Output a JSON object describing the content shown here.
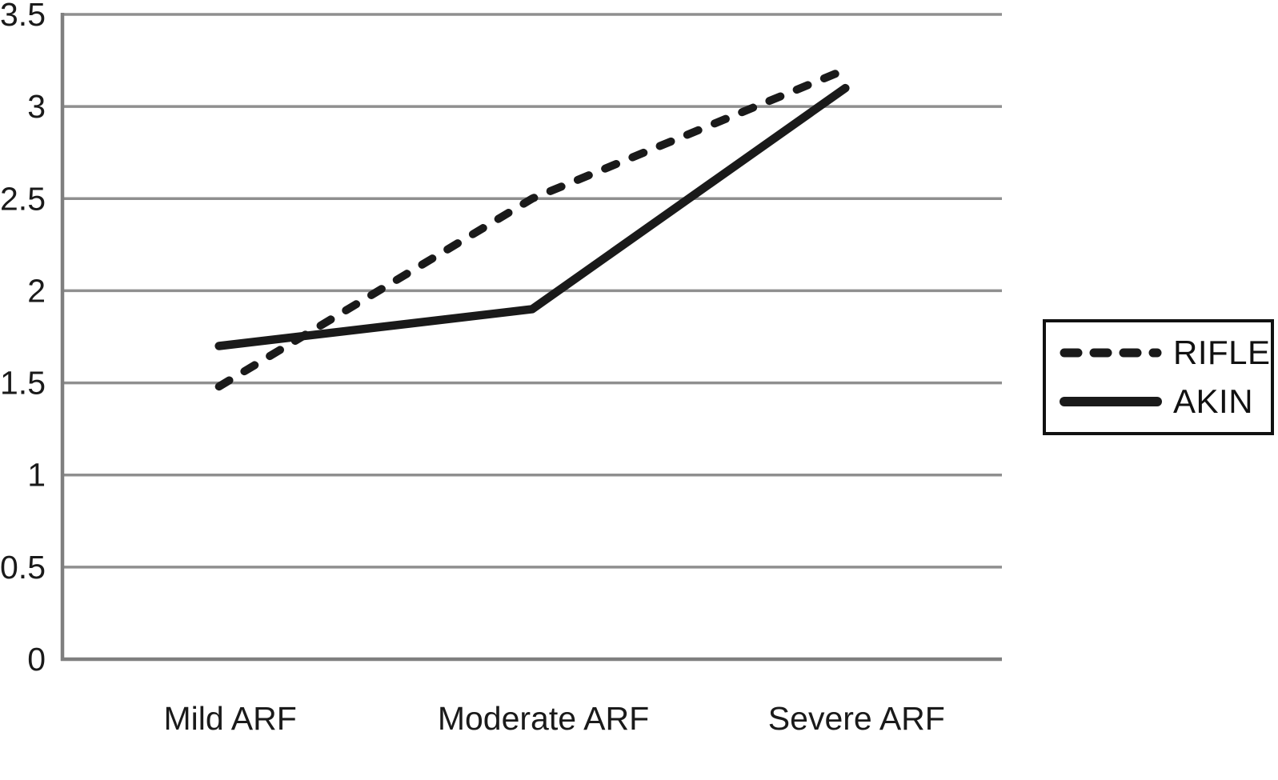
{
  "chart_data": {
    "type": "line",
    "title": "",
    "xlabel": "",
    "ylabel": "",
    "categories": [
      "Mild ARF",
      "Moderate ARF",
      "Severe ARF"
    ],
    "series": [
      {
        "name": "RIFLE",
        "line_style": "dashed",
        "values": [
          1.48,
          2.5,
          3.2
        ]
      },
      {
        "name": "AKIN",
        "line_style": "solid",
        "values": [
          1.7,
          1.9,
          3.1
        ]
      }
    ],
    "ylim": [
      0,
      3.5
    ],
    "ytick_step": 0.5,
    "ytick_labels": [
      "0",
      "0.5",
      "1",
      "1.5",
      "2",
      "2.5",
      "3",
      "3.5"
    ],
    "grid": "horizontal",
    "legend_position": "right",
    "colors": {
      "line": "#1a1a1a",
      "grid": "#8f8f8f",
      "axis": "#7f7f7f",
      "text": "#1a1a1a",
      "background": "#ffffff",
      "legend_border": "#111111"
    }
  }
}
